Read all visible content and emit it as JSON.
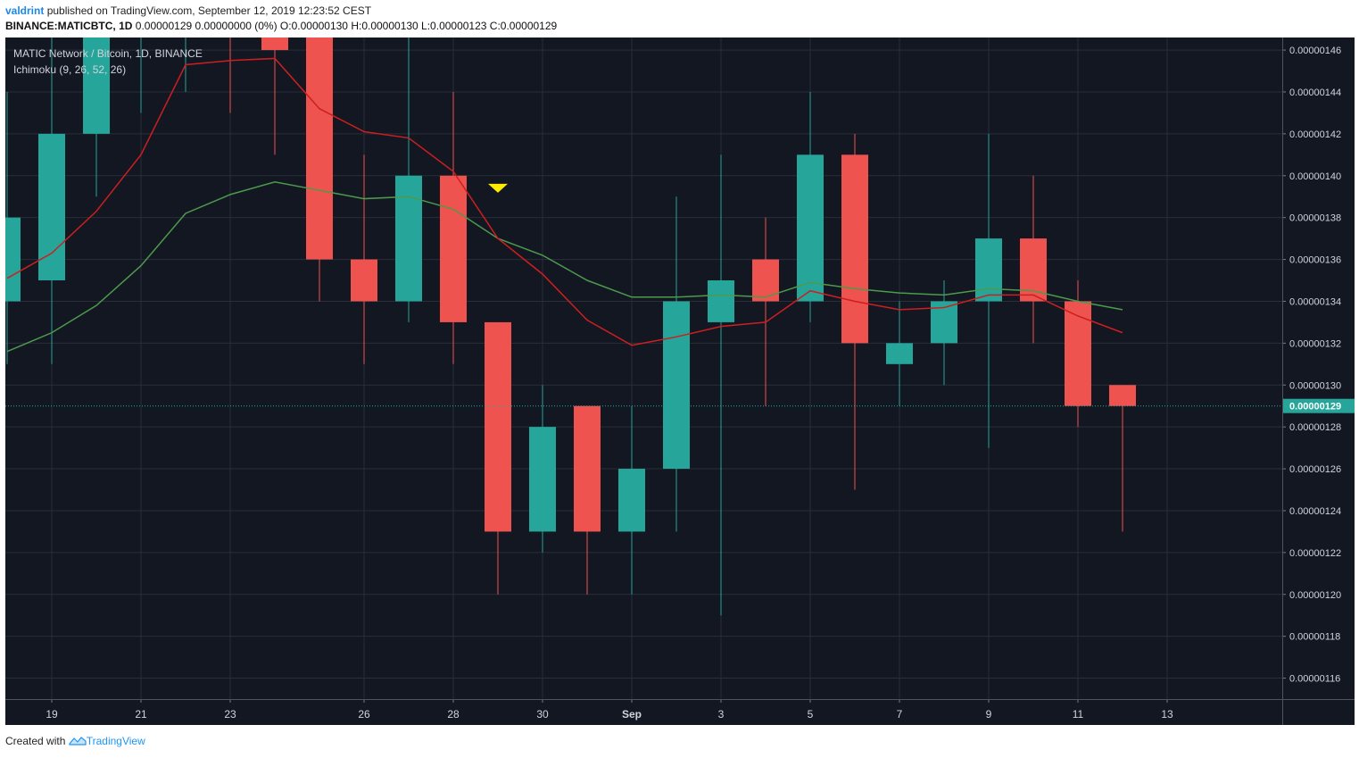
{
  "header": {
    "author": "valdrint",
    "published_text": "published on TradingView.com, September 12, 2019 12:23:52 CEST",
    "symbol_line": "BINANCE:MATICBTC, 1D",
    "ohlc_line": "0.00000129 0.00000000 (0%) O:0.00000130 H:0.00000130 L:0.00000123 C:0.00000129"
  },
  "footer": {
    "created_with": "Created with",
    "brand": "TradingView"
  },
  "colors": {
    "background": "#131722",
    "grid": "#2a2e39",
    "up": "#26a69a",
    "down": "#ef5350",
    "conversion_line": "#cc1f1f",
    "base_line": "#4c9a4c",
    "marker": "#ffeb00",
    "price_line": "#26a69a"
  },
  "chart_data": {
    "type": "candlestick",
    "title": "MATIC Network / Bitcoin, 1D, BINANCE",
    "indicator": "Ichimoku (9, 26, 52, 26)",
    "x_tick_labels": [
      {
        "day": 0,
        "label": "19"
      },
      {
        "day": 2,
        "label": "21"
      },
      {
        "day": 4,
        "label": "23"
      },
      {
        "day": 7,
        "label": "26"
      },
      {
        "day": 9,
        "label": "28"
      },
      {
        "day": 11,
        "label": "30"
      },
      {
        "day": 13,
        "label": "Sep"
      },
      {
        "day": 15,
        "label": "3"
      },
      {
        "day": 17,
        "label": "5"
      },
      {
        "day": 19,
        "label": "7"
      },
      {
        "day": 21,
        "label": "9"
      },
      {
        "day": 23,
        "label": "11"
      },
      {
        "day": 25,
        "label": "13"
      }
    ],
    "y_ticks": [
      "0.00000116",
      "0.00000118",
      "0.00000120",
      "0.00000122",
      "0.00000124",
      "0.00000126",
      "0.00000128",
      "0.00000130",
      "0.00000132",
      "0.00000134",
      "0.00000136",
      "0.00000138",
      "0.00000140",
      "0.00000142",
      "0.00000144",
      "0.00000146"
    ],
    "ylim": [
      115.0,
      146.6
    ],
    "y_unit_scale": "1e-8 BTC",
    "current_price_label": "0.00000129",
    "current_price": 129,
    "candles": [
      {
        "day": -1,
        "o": 134,
        "h": 144,
        "l": 131,
        "c": 138
      },
      {
        "day": 0,
        "o": 135,
        "h": 147,
        "l": 131,
        "c": 142
      },
      {
        "day": 1,
        "o": 142,
        "h": 148,
        "l": 139,
        "c": 147
      },
      {
        "day": 2,
        "o": 147,
        "h": 149,
        "l": 143,
        "c": 148
      },
      {
        "day": 3,
        "o": 148,
        "h": 149,
        "l": 144,
        "c": 149
      },
      {
        "day": 4,
        "o": 149,
        "h": 150,
        "l": 143,
        "c": 148
      },
      {
        "day": 5,
        "o": 147,
        "h": 149,
        "l": 141,
        "c": 146
      },
      {
        "day": 6,
        "o": 149,
        "h": 150,
        "l": 134,
        "c": 136
      },
      {
        "day": 7,
        "o": 136,
        "h": 141,
        "l": 131,
        "c": 134
      },
      {
        "day": 8,
        "o": 134,
        "h": 147,
        "l": 133,
        "c": 140
      },
      {
        "day": 9,
        "o": 140,
        "h": 144,
        "l": 131,
        "c": 133
      },
      {
        "day": 10,
        "o": 133,
        "h": 133,
        "l": 120,
        "c": 123
      },
      {
        "day": 11,
        "o": 123,
        "h": 130,
        "l": 122,
        "c": 128
      },
      {
        "day": 12,
        "o": 129,
        "h": 129,
        "l": 120,
        "c": 123
      },
      {
        "day": 13,
        "o": 123,
        "h": 129,
        "l": 120,
        "c": 126
      },
      {
        "day": 14,
        "o": 126,
        "h": 139,
        "l": 123,
        "c": 134
      },
      {
        "day": 15,
        "o": 133,
        "h": 141,
        "l": 119,
        "c": 135
      },
      {
        "day": 16,
        "o": 136,
        "h": 138,
        "l": 129,
        "c": 134
      },
      {
        "day": 17,
        "o": 134,
        "h": 144,
        "l": 133,
        "c": 141
      },
      {
        "day": 18,
        "o": 141,
        "h": 142,
        "l": 125,
        "c": 132
      },
      {
        "day": 19,
        "o": 131,
        "h": 134,
        "l": 129,
        "c": 132
      },
      {
        "day": 20,
        "o": 132,
        "h": 135,
        "l": 130,
        "c": 134
      },
      {
        "day": 21,
        "o": 134,
        "h": 142,
        "l": 127,
        "c": 137
      },
      {
        "day": 22,
        "o": 137,
        "h": 140,
        "l": 132,
        "c": 134
      },
      {
        "day": 23,
        "o": 134,
        "h": 135,
        "l": 128,
        "c": 129
      },
      {
        "day": 24,
        "o": 130,
        "h": 130,
        "l": 123,
        "c": 129
      }
    ],
    "conversion_line": [
      {
        "day": -1,
        "v": 135.1
      },
      {
        "day": 0,
        "v": 136.3
      },
      {
        "day": 1,
        "v": 138.3
      },
      {
        "day": 2,
        "v": 141.0
      },
      {
        "day": 3,
        "v": 145.3
      },
      {
        "day": 4,
        "v": 145.5
      },
      {
        "day": 5,
        "v": 145.6
      },
      {
        "day": 6,
        "v": 143.2
      },
      {
        "day": 7,
        "v": 142.1
      },
      {
        "day": 8,
        "v": 141.8
      },
      {
        "day": 9,
        "v": 140.2
      },
      {
        "day": 10,
        "v": 137.0
      },
      {
        "day": 11,
        "v": 135.3
      },
      {
        "day": 12,
        "v": 133.1
      },
      {
        "day": 13,
        "v": 131.9
      },
      {
        "day": 14,
        "v": 132.3
      },
      {
        "day": 15,
        "v": 132.8
      },
      {
        "day": 16,
        "v": 133.0
      },
      {
        "day": 17,
        "v": 134.5
      },
      {
        "day": 18,
        "v": 134.0
      },
      {
        "day": 19,
        "v": 133.6
      },
      {
        "day": 20,
        "v": 133.7
      },
      {
        "day": 21,
        "v": 134.3
      },
      {
        "day": 22,
        "v": 134.3
      },
      {
        "day": 23,
        "v": 133.3
      },
      {
        "day": 24,
        "v": 132.5
      }
    ],
    "base_line": [
      {
        "day": -1,
        "v": 131.6
      },
      {
        "day": 0,
        "v": 132.5
      },
      {
        "day": 1,
        "v": 133.8
      },
      {
        "day": 2,
        "v": 135.7
      },
      {
        "day": 3,
        "v": 138.2
      },
      {
        "day": 4,
        "v": 139.1
      },
      {
        "day": 5,
        "v": 139.7
      },
      {
        "day": 6,
        "v": 139.3
      },
      {
        "day": 7,
        "v": 138.9
      },
      {
        "day": 8,
        "v": 139.0
      },
      {
        "day": 9,
        "v": 138.4
      },
      {
        "day": 10,
        "v": 137.0
      },
      {
        "day": 11,
        "v": 136.2
      },
      {
        "day": 12,
        "v": 135.0
      },
      {
        "day": 13,
        "v": 134.2
      },
      {
        "day": 14,
        "v": 134.2
      },
      {
        "day": 15,
        "v": 134.3
      },
      {
        "day": 16,
        "v": 134.2
      },
      {
        "day": 17,
        "v": 134.9
      },
      {
        "day": 18,
        "v": 134.6
      },
      {
        "day": 19,
        "v": 134.4
      },
      {
        "day": 20,
        "v": 134.3
      },
      {
        "day": 21,
        "v": 134.6
      },
      {
        "day": 22,
        "v": 134.5
      },
      {
        "day": 23,
        "v": 134.0
      },
      {
        "day": 24,
        "v": 133.6
      }
    ],
    "marker": {
      "day": 10,
      "v": 139.4,
      "shape": "triangle-down"
    }
  }
}
